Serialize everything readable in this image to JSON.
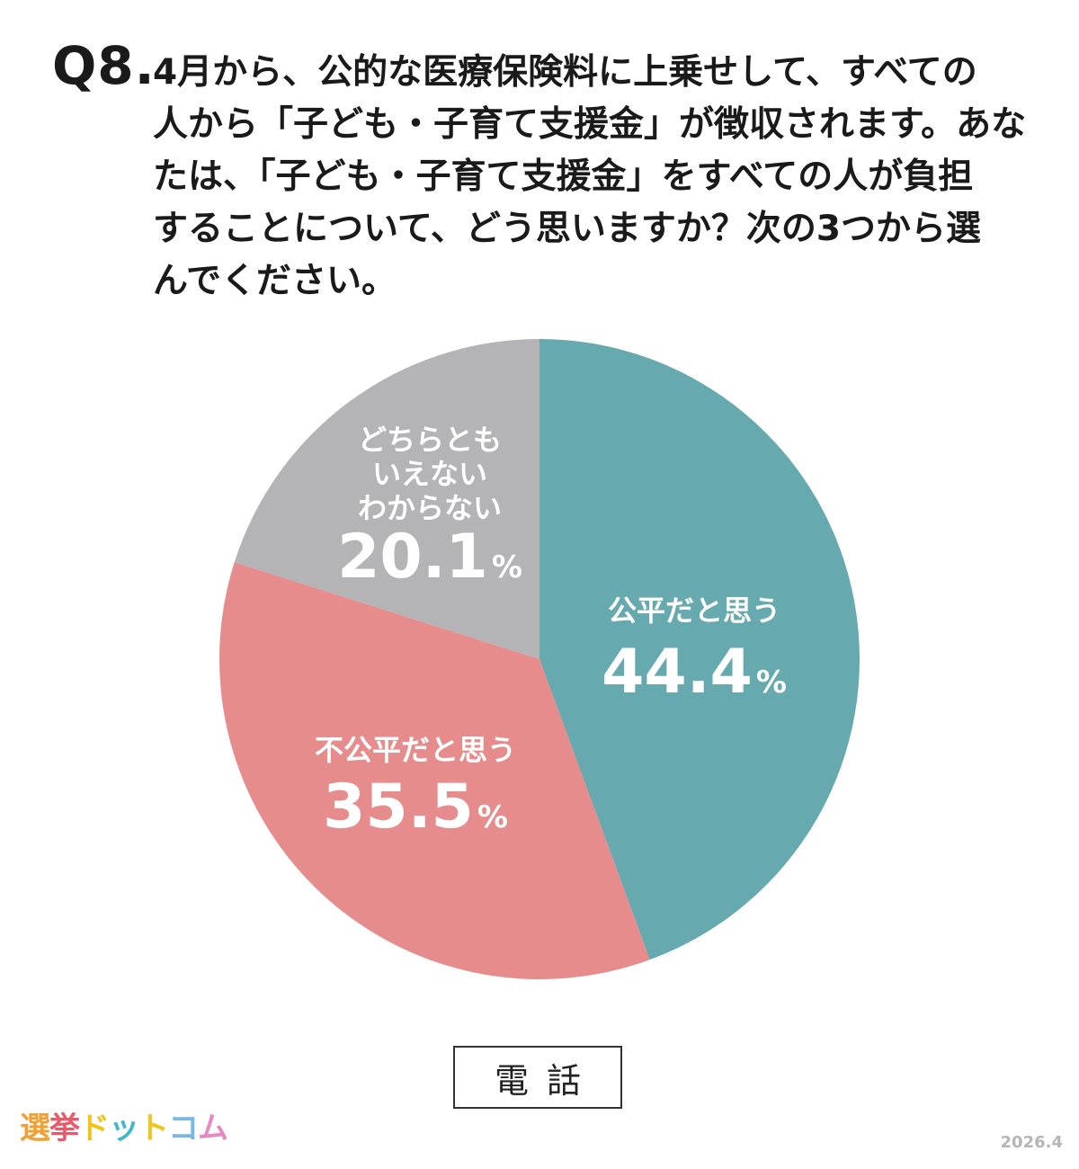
{
  "question": {
    "number": "Q8.",
    "lines": [
      "4月から、公的な医療保険料に上乗せして、すべての",
      "人から「子ども・子育て支援金」が徴収されます。あな",
      "たは、「子ども・子育て支援金」をすべての人が負担",
      "することについて、どう思いますか？次の3つから選",
      "んでください。"
    ]
  },
  "chart_data": {
    "type": "pie",
    "slices": [
      {
        "name": "公平だと思う",
        "label_lines": [
          "公平だと思う"
        ],
        "value": 44.4,
        "color": "#66aab0"
      },
      {
        "name": "不公平だと思う",
        "label_lines": [
          "不公平だと思う"
        ],
        "value": 35.5,
        "color": "#e68c8c"
      },
      {
        "name": "どちらともいえないわからない",
        "label_lines": [
          "どちらとも",
          "いえない",
          "わからない"
        ],
        "value": 20.1,
        "color": "#b4b4b6"
      }
    ],
    "percent_sign": "%",
    "method": "電話"
  },
  "logo": {
    "text": "選挙ドットコム",
    "chars": [
      "選",
      "挙",
      "ド",
      "ッ",
      "ト",
      "コ",
      "ム"
    ],
    "colors": [
      "#f0a030",
      "#e85a6a",
      "#f2c318",
      "#3fb9c9",
      "#f2c318",
      "#7ab8e4",
      "#e58ac0"
    ]
  },
  "date": "2026.4"
}
